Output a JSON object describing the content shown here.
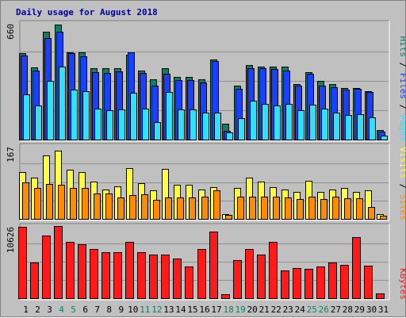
{
  "title": "Daily usage for August 2018",
  "colors": {
    "hits": "#0d8060",
    "files": "#1840ff",
    "pages": "#30e0ff",
    "visits": "#ffff40",
    "sites": "#ff8c00",
    "kbytes": "#ff1a1a",
    "weekend_label": "#0d8060",
    "weekday_label": "#000000",
    "axis_text": "#000000"
  },
  "chart_data": [
    {
      "type": "bar",
      "title": "Daily usage for August 2018",
      "ylabel_parts": [
        "Pages",
        "Files",
        "Hits"
      ],
      "ymax_label": "660",
      "ylim": [
        0,
        660
      ],
      "categories": [
        "1",
        "2",
        "3",
        "4",
        "5",
        "6",
        "7",
        "8",
        "9",
        "10",
        "11",
        "12",
        "13",
        "14",
        "15",
        "16",
        "17",
        "18",
        "19",
        "20",
        "21",
        "22",
        "23",
        "24",
        "25",
        "26",
        "27",
        "28",
        "29",
        "30",
        "31"
      ],
      "weekend_days": [
        "4",
        "5",
        "11",
        "12",
        "18",
        "19",
        "25",
        "26"
      ],
      "series": [
        {
          "name": "Hits",
          "values": [
            495,
            415,
            620,
            660,
            500,
            500,
            410,
            410,
            410,
            490,
            400,
            350,
            410,
            360,
            360,
            350,
            460,
            95,
            310,
            430,
            420,
            420,
            420,
            320,
            390,
            340,
            320,
            300,
            300,
            280,
            60
          ]
        },
        {
          "name": "Files",
          "values": [
            485,
            400,
            585,
            620,
            495,
            480,
            390,
            385,
            395,
            500,
            385,
            310,
            380,
            345,
            345,
            330,
            450,
            55,
            295,
            410,
            410,
            405,
            400,
            310,
            380,
            310,
            305,
            290,
            295,
            275,
            50
          ]
        },
        {
          "name": "Pages",
          "values": [
            260,
            200,
            340,
            420,
            290,
            280,
            180,
            170,
            175,
            270,
            180,
            105,
            275,
            175,
            175,
            160,
            160,
            45,
            125,
            225,
            210,
            200,
            210,
            170,
            205,
            180,
            160,
            145,
            150,
            130,
            25
          ]
        }
      ]
    },
    {
      "type": "bar",
      "ylabel_parts": [
        "Sites",
        "Visits"
      ],
      "ymax_label": "167",
      "ylim": [
        0,
        167
      ],
      "categories": [
        "1",
        "2",
        "3",
        "4",
        "5",
        "6",
        "7",
        "8",
        "9",
        "10",
        "11",
        "12",
        "13",
        "14",
        "15",
        "16",
        "17",
        "18",
        "19",
        "20",
        "21",
        "22",
        "23",
        "24",
        "25",
        "26",
        "27",
        "28",
        "29",
        "30",
        "31"
      ],
      "series": [
        {
          "name": "Visits",
          "values": [
            110,
            98,
            148,
            160,
            115,
            110,
            88,
            70,
            77,
            120,
            85,
            68,
            118,
            80,
            80,
            70,
            75,
            12,
            73,
            97,
            88,
            75,
            70,
            64,
            90,
            65,
            70,
            74,
            64,
            67,
            13
          ]
        },
        {
          "name": "Sites",
          "values": [
            87,
            73,
            82,
            80,
            74,
            74,
            60,
            60,
            52,
            56,
            58,
            45,
            52,
            52,
            52,
            54,
            67,
            11,
            53,
            53,
            54,
            53,
            52,
            48,
            54,
            48,
            53,
            50,
            50,
            29,
            10
          ]
        }
      ]
    },
    {
      "type": "bar",
      "ylabel_parts": [
        "KBytes"
      ],
      "ymax_label": "10626",
      "ylim": [
        0,
        10626
      ],
      "categories": [
        "1",
        "2",
        "3",
        "4",
        "5",
        "6",
        "7",
        "8",
        "9",
        "10",
        "11",
        "12",
        "13",
        "14",
        "15",
        "16",
        "17",
        "18",
        "19",
        "20",
        "21",
        "22",
        "23",
        "24",
        "25",
        "26",
        "27",
        "28",
        "29",
        "30",
        "31"
      ],
      "series": [
        {
          "name": "KBytes",
          "values": [
            10800,
            5400,
            9400,
            10900,
            8500,
            8100,
            7400,
            7000,
            7000,
            8500,
            7000,
            6600,
            6600,
            6000,
            4800,
            7400,
            10000,
            700,
            5800,
            7400,
            6600,
            8500,
            4300,
            4600,
            4500,
            4800,
            5400,
            5100,
            9200,
            4900,
            800
          ]
        }
      ]
    }
  ]
}
